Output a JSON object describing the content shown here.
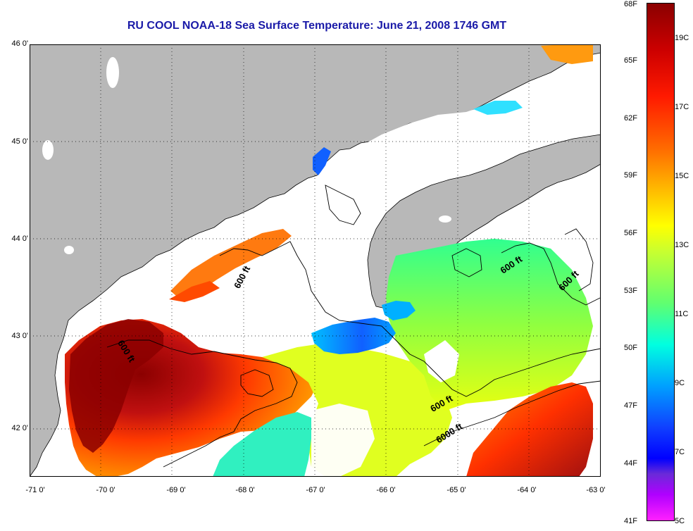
{
  "title": "RU COOL  NOAA-18  Sea Surface Temperature:  June 21, 2008 1746 GMT",
  "lat_ticks": [
    "46 0'",
    "45 0'",
    "44 0'",
    "43 0'",
    "42 0'"
  ],
  "lon_ticks": [
    "-71 0'",
    "-70 0'",
    "-69 0'",
    "-68 0'",
    "-67 0'",
    "-66 0'",
    "-65 0'",
    "-64 0'",
    "-63 0'"
  ],
  "contour_labels": {
    "a": "600 ft",
    "b": "600 ft",
    "c": "600 ft",
    "d": "600 ft",
    "e": "600 ft",
    "f": "6000 ft"
  },
  "colorbar": {
    "fahrenheit": [
      "68F",
      "65F",
      "62F",
      "59F",
      "56F",
      "53F",
      "50F",
      "47F",
      "44F",
      "41F"
    ],
    "celsius": [
      "19C",
      "17C",
      "15C",
      "13C",
      "11C",
      "9C",
      "7C",
      "5C"
    ]
  },
  "colors": {
    "land": "#b8b8b8",
    "title": "#1a1aa8"
  }
}
